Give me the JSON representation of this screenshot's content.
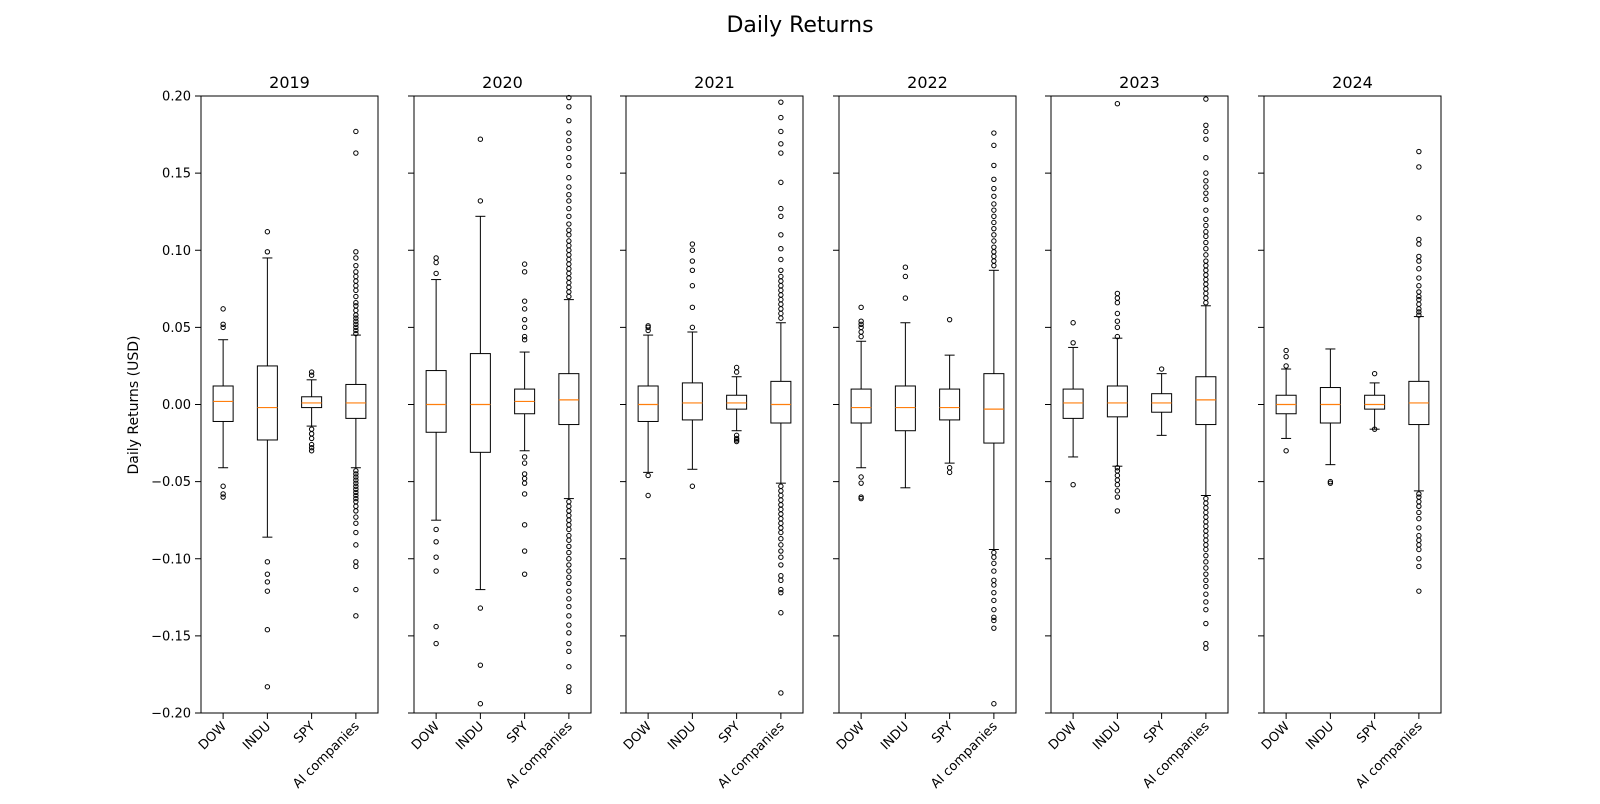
{
  "title": "Daily Returns",
  "ylabel": "Daily Returns (USD)",
  "colors": {
    "box": "#000000",
    "median": "#ff7f0e",
    "background": "#ffffff"
  },
  "chart_data": {
    "type": "box",
    "title": "Daily Returns",
    "ylabel": "Daily Returns (USD)",
    "ylim": [
      -0.2,
      0.2
    ],
    "yticks": [
      -0.2,
      -0.15,
      -0.1,
      -0.05,
      0.0,
      0.05,
      0.1,
      0.15,
      0.2
    ],
    "ytick_labels": [
      "−0.20",
      "−0.15",
      "−0.10",
      "−0.05",
      "0.00",
      "0.05",
      "0.10",
      "0.15",
      "0.20"
    ],
    "categories": [
      "DOW",
      "INDU",
      "SPY",
      "AI companies"
    ],
    "grid": false,
    "panels": [
      {
        "title": "2019",
        "boxes": [
          {
            "category": "DOW",
            "whisker_low": -0.041,
            "q1": -0.011,
            "median": 0.002,
            "q3": 0.012,
            "whisker_high": 0.042,
            "outliers": [
              0.062,
              0.052,
              0.05,
              -0.053,
              -0.058,
              -0.06
            ]
          },
          {
            "category": "INDU",
            "whisker_low": -0.086,
            "q1": -0.023,
            "median": -0.002,
            "q3": 0.025,
            "whisker_high": 0.095,
            "outliers": [
              0.112,
              0.099,
              -0.102,
              -0.11,
              -0.115,
              -0.121,
              -0.146,
              -0.183
            ]
          },
          {
            "category": "SPY",
            "whisker_low": -0.014,
            "q1": -0.002,
            "median": 0.001,
            "q3": 0.005,
            "whisker_high": 0.016,
            "outliers": [
              0.021,
              0.019,
              -0.016,
              -0.019,
              -0.022,
              -0.026,
              -0.028,
              -0.03
            ]
          },
          {
            "category": "AI companies",
            "whisker_low": -0.041,
            "q1": -0.009,
            "median": 0.001,
            "q3": 0.013,
            "whisker_high": 0.045,
            "outliers": [
              0.177,
              0.163,
              0.099,
              0.095,
              0.09,
              0.086,
              0.083,
              0.08,
              0.077,
              0.074,
              0.07,
              0.066,
              0.064,
              0.061,
              0.058,
              0.056,
              0.054,
              0.052,
              0.05,
              0.048,
              0.046,
              -0.043,
              -0.045,
              -0.047,
              -0.049,
              -0.051,
              -0.053,
              -0.055,
              -0.057,
              -0.059,
              -0.061,
              -0.063,
              -0.066,
              -0.069,
              -0.073,
              -0.077,
              -0.083,
              -0.091,
              -0.102,
              -0.105,
              -0.12,
              -0.137
            ]
          }
        ]
      },
      {
        "title": "2020",
        "boxes": [
          {
            "category": "DOW",
            "whisker_low": -0.075,
            "q1": -0.018,
            "median": 0.0,
            "q3": 0.022,
            "whisker_high": 0.081,
            "outliers": [
              0.095,
              0.092,
              0.085,
              -0.081,
              -0.089,
              -0.099,
              -0.108,
              -0.144,
              -0.155
            ]
          },
          {
            "category": "INDU",
            "whisker_low": -0.12,
            "q1": -0.031,
            "median": 0.0,
            "q3": 0.033,
            "whisker_high": 0.122,
            "outliers": [
              0.172,
              0.132,
              -0.132,
              -0.169,
              -0.194
            ]
          },
          {
            "category": "SPY",
            "whisker_low": -0.03,
            "q1": -0.006,
            "median": 0.002,
            "q3": 0.01,
            "whisker_high": 0.034,
            "outliers": [
              0.091,
              0.086,
              0.067,
              0.062,
              0.055,
              0.05,
              0.044,
              0.042,
              -0.034,
              -0.038,
              -0.045,
              -0.048,
              -0.051,
              -0.058,
              -0.078,
              -0.095,
              -0.11
            ]
          },
          {
            "category": "AI companies",
            "whisker_low": -0.061,
            "q1": -0.013,
            "median": 0.003,
            "q3": 0.02,
            "whisker_high": 0.068,
            "outliers": [
              0.199,
              0.193,
              0.184,
              0.176,
              0.171,
              0.166,
              0.16,
              0.155,
              0.147,
              0.141,
              0.136,
              0.132,
              0.127,
              0.122,
              0.117,
              0.113,
              0.11,
              0.106,
              0.103,
              0.1,
              0.097,
              0.094,
              0.091,
              0.088,
              0.085,
              0.082,
              0.079,
              0.076,
              0.073,
              0.07,
              -0.063,
              -0.066,
              -0.069,
              -0.072,
              -0.075,
              -0.078,
              -0.081,
              -0.085,
              -0.088,
              -0.092,
              -0.096,
              -0.1,
              -0.104,
              -0.108,
              -0.112,
              -0.116,
              -0.121,
              -0.126,
              -0.131,
              -0.137,
              -0.143,
              -0.148,
              -0.155,
              -0.16,
              -0.17,
              -0.183,
              -0.186
            ]
          }
        ]
      },
      {
        "title": "2021",
        "boxes": [
          {
            "category": "DOW",
            "whisker_low": -0.044,
            "q1": -0.011,
            "median": 0.0,
            "q3": 0.012,
            "whisker_high": 0.045,
            "outliers": [
              0.051,
              0.05,
              0.048,
              -0.046,
              -0.059
            ]
          },
          {
            "category": "INDU",
            "whisker_low": -0.042,
            "q1": -0.01,
            "median": 0.001,
            "q3": 0.014,
            "whisker_high": 0.047,
            "outliers": [
              0.104,
              0.1,
              0.093,
              0.087,
              0.077,
              0.063,
              0.05,
              -0.053
            ]
          },
          {
            "category": "SPY",
            "whisker_low": -0.017,
            "q1": -0.003,
            "median": 0.001,
            "q3": 0.006,
            "whisker_high": 0.018,
            "outliers": [
              0.024,
              0.021,
              -0.02,
              -0.022,
              -0.023,
              -0.024
            ]
          },
          {
            "category": "AI companies",
            "whisker_low": -0.051,
            "q1": -0.012,
            "median": 0.0,
            "q3": 0.015,
            "whisker_high": 0.053,
            "outliers": [
              0.196,
              0.186,
              0.177,
              0.169,
              0.163,
              0.144,
              0.127,
              0.122,
              0.11,
              0.101,
              0.094,
              0.087,
              0.083,
              0.08,
              0.077,
              0.074,
              0.071,
              0.068,
              0.065,
              0.062,
              0.059,
              0.056,
              -0.053,
              -0.056,
              -0.059,
              -0.062,
              -0.065,
              -0.068,
              -0.071,
              -0.074,
              -0.077,
              -0.08,
              -0.083,
              -0.087,
              -0.091,
              -0.095,
              -0.099,
              -0.104,
              -0.111,
              -0.114,
              -0.12,
              -0.122,
              -0.135,
              -0.187
            ]
          }
        ]
      },
      {
        "title": "2022",
        "boxes": [
          {
            "category": "DOW",
            "whisker_low": -0.041,
            "q1": -0.012,
            "median": -0.002,
            "q3": 0.01,
            "whisker_high": 0.041,
            "outliers": [
              0.063,
              0.054,
              0.052,
              0.05,
              0.047,
              0.044,
              -0.047,
              -0.051,
              -0.06,
              -0.061
            ]
          },
          {
            "category": "INDU",
            "whisker_low": -0.054,
            "q1": -0.017,
            "median": -0.002,
            "q3": 0.012,
            "whisker_high": 0.053,
            "outliers": [
              0.089,
              0.083,
              0.069
            ]
          },
          {
            "category": "SPY",
            "whisker_low": -0.038,
            "q1": -0.01,
            "median": -0.002,
            "q3": 0.01,
            "whisker_high": 0.032,
            "outliers": [
              0.055,
              -0.041,
              -0.044
            ]
          },
          {
            "category": "AI companies",
            "whisker_low": -0.094,
            "q1": -0.025,
            "median": -0.003,
            "q3": 0.02,
            "whisker_high": 0.087,
            "outliers": [
              0.176,
              0.168,
              0.155,
              0.146,
              0.14,
              0.135,
              0.13,
              0.126,
              0.122,
              0.118,
              0.114,
              0.11,
              0.106,
              0.102,
              0.099,
              0.096,
              0.093,
              0.09,
              -0.096,
              -0.099,
              -0.103,
              -0.108,
              -0.114,
              -0.117,
              -0.122,
              -0.127,
              -0.133,
              -0.138,
              -0.14,
              -0.145,
              -0.194
            ]
          }
        ]
      },
      {
        "title": "2023",
        "boxes": [
          {
            "category": "DOW",
            "whisker_low": -0.034,
            "q1": -0.009,
            "median": 0.001,
            "q3": 0.01,
            "whisker_high": 0.037,
            "outliers": [
              0.053,
              0.04,
              -0.052
            ]
          },
          {
            "category": "INDU",
            "whisker_low": -0.04,
            "q1": -0.008,
            "median": 0.001,
            "q3": 0.012,
            "whisker_high": 0.043,
            "outliers": [
              0.195,
              0.072,
              0.069,
              0.066,
              0.059,
              0.054,
              0.05,
              0.044,
              -0.041,
              -0.043,
              -0.046,
              -0.049,
              -0.052,
              -0.056,
              -0.06,
              -0.069
            ]
          },
          {
            "category": "SPY",
            "whisker_low": -0.02,
            "q1": -0.005,
            "median": 0.001,
            "q3": 0.007,
            "whisker_high": 0.02,
            "outliers": [
              0.023
            ]
          },
          {
            "category": "AI companies",
            "whisker_low": -0.059,
            "q1": -0.013,
            "median": 0.003,
            "q3": 0.018,
            "whisker_high": 0.064,
            "outliers": [
              0.198,
              0.181,
              0.177,
              0.172,
              0.16,
              0.15,
              0.145,
              0.141,
              0.137,
              0.133,
              0.126,
              0.12,
              0.116,
              0.112,
              0.109,
              0.105,
              0.101,
              0.097,
              0.093,
              0.09,
              0.087,
              0.084,
              0.081,
              0.078,
              0.075,
              0.072,
              0.069,
              0.066,
              -0.061,
              -0.064,
              -0.067,
              -0.07,
              -0.073,
              -0.076,
              -0.079,
              -0.082,
              -0.085,
              -0.088,
              -0.091,
              -0.094,
              -0.098,
              -0.102,
              -0.106,
              -0.11,
              -0.114,
              -0.118,
              -0.123,
              -0.128,
              -0.133,
              -0.142,
              -0.155,
              -0.158
            ]
          }
        ]
      },
      {
        "title": "2024",
        "boxes": [
          {
            "category": "DOW",
            "whisker_low": -0.022,
            "q1": -0.006,
            "median": 0.0,
            "q3": 0.006,
            "whisker_high": 0.023,
            "outliers": [
              0.035,
              0.031,
              0.025,
              -0.03
            ]
          },
          {
            "category": "INDU",
            "whisker_low": -0.039,
            "q1": -0.012,
            "median": 0.0,
            "q3": 0.011,
            "whisker_high": 0.036,
            "outliers": [
              -0.05,
              -0.051
            ]
          },
          {
            "category": "SPY",
            "whisker_low": -0.016,
            "q1": -0.003,
            "median": 0.0,
            "q3": 0.006,
            "whisker_high": 0.014,
            "outliers": [
              0.02,
              -0.016
            ]
          },
          {
            "category": "AI companies",
            "whisker_low": -0.056,
            "q1": -0.013,
            "median": 0.001,
            "q3": 0.015,
            "whisker_high": 0.057,
            "outliers": [
              0.164,
              0.154,
              0.121,
              0.107,
              0.104,
              0.096,
              0.093,
              0.088,
              0.082,
              0.077,
              0.073,
              0.07,
              0.068,
              0.065,
              0.062,
              0.06,
              0.058,
              -0.058,
              -0.06,
              -0.063,
              -0.066,
              -0.07,
              -0.074,
              -0.08,
              -0.085,
              -0.088,
              -0.091,
              -0.094,
              -0.1,
              -0.105,
              -0.121
            ]
          }
        ]
      }
    ]
  }
}
